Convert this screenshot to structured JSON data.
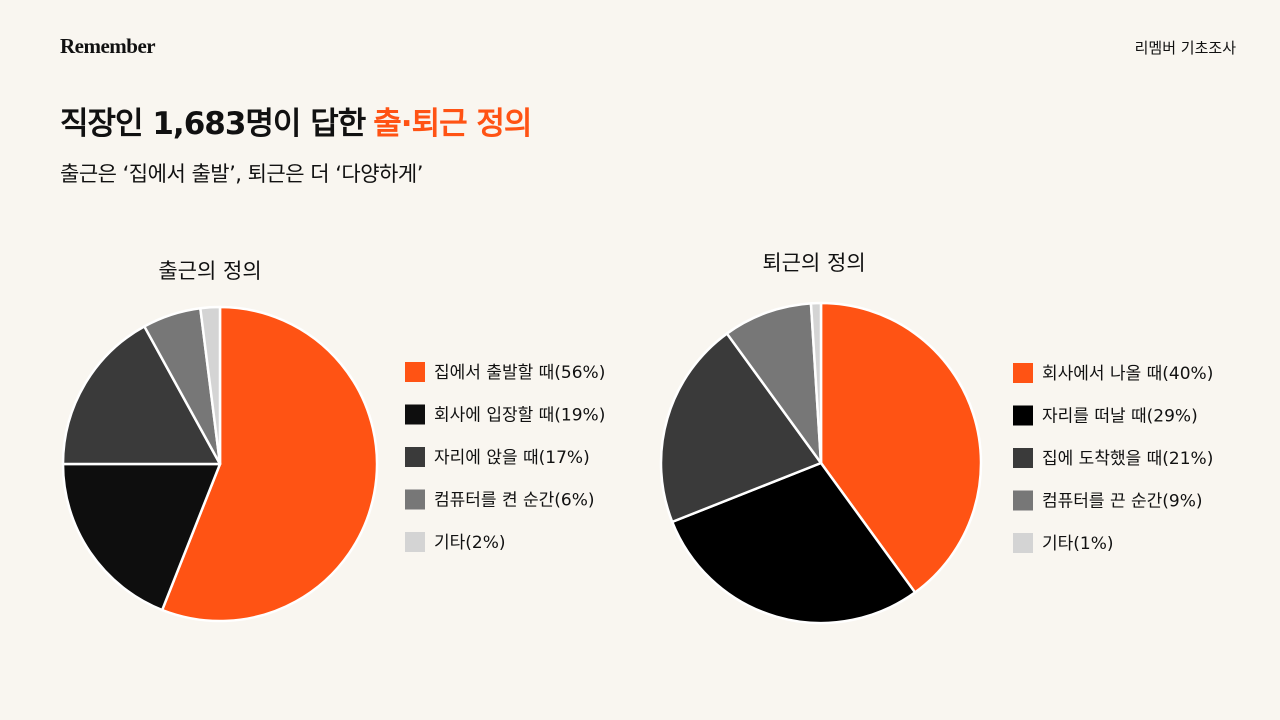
{
  "header": {
    "brand": "Remember",
    "source": "리멤버 기초조사",
    "title": "직장인 1,683명이 답한",
    "title_highlight": "출·퇴근 정의",
    "subtitle": "출근은 ‘집에서 출발’, 퇴근은 더 ‘다양하게’"
  },
  "chart_data": [
    {
      "type": "pie",
      "title": "출근의 정의",
      "categories": [
        "집에서 출발할 때",
        "회사에 입장할 때",
        "자리에 앉을 때",
        "컴퓨터를 켠 순간",
        "기타"
      ],
      "values": [
        56,
        19,
        17,
        6,
        2
      ],
      "value_labels": [
        "(56%)",
        "(19%)",
        "(17%)",
        "(6%)",
        "(2%)"
      ],
      "colors": [
        "#ff5314",
        "#0e0e0e",
        "#3a3a3a",
        "#777777",
        "#d4d4d4"
      ]
    },
    {
      "type": "pie",
      "title": "퇴근의 정의",
      "categories": [
        "회사에서 나올 때",
        "자리를 떠날 때",
        "집에 도착했을 때",
        "컴퓨터를 끈 순간",
        "기타"
      ],
      "values": [
        40,
        29,
        21,
        9,
        1
      ],
      "value_labels": [
        "(40%)",
        "(29%)",
        "(21%)",
        "(9%)",
        "(1%)"
      ],
      "colors": [
        "#ff5314",
        "#000000",
        "#3a3a3a",
        "#777777",
        "#d4d4d4"
      ]
    }
  ]
}
